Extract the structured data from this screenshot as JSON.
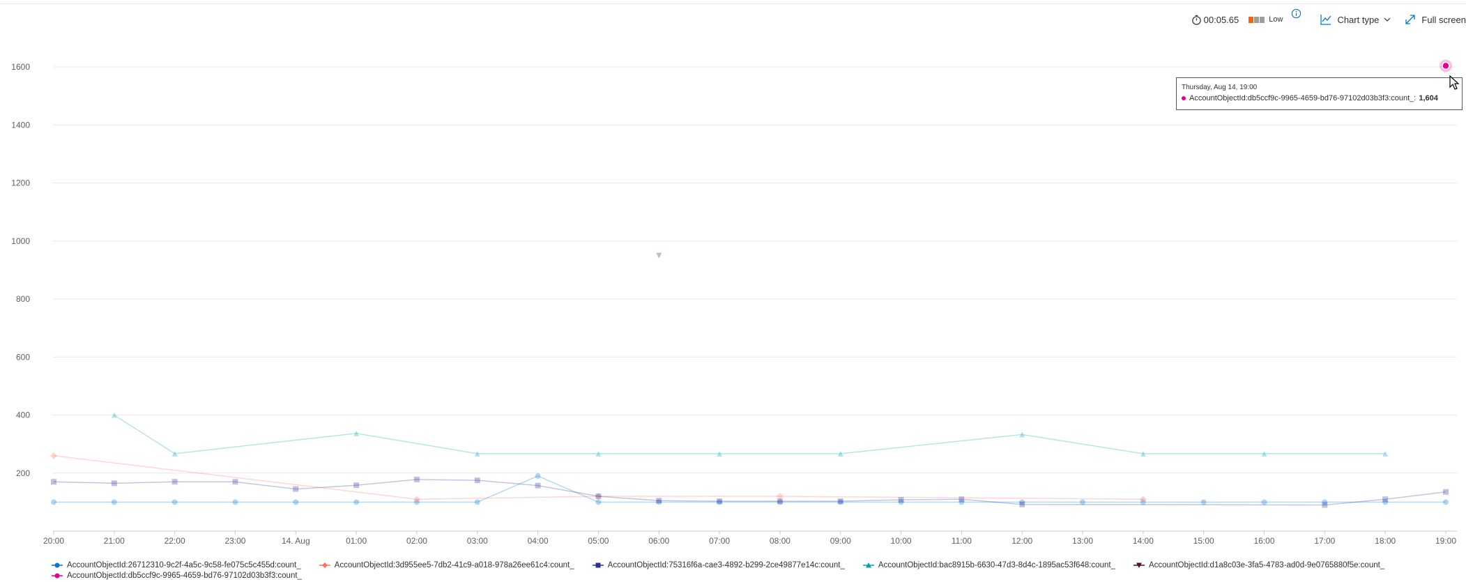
{
  "toolbar": {
    "duration": "00:05.65",
    "perf_label": "Low",
    "perf_colors": [
      "#f7630c",
      "#a19f9d",
      "#a19f9d"
    ],
    "chart_type_label": "Chart type",
    "full_screen_label": "Full screen",
    "icons": [
      "timer-icon",
      "info-icon",
      "line-chart-icon",
      "chevron-down-icon",
      "expand-icon"
    ]
  },
  "tooltip": {
    "date": "Thursday, Aug 14, 19:00",
    "series": "AccountObjectId:db5ccf9c-9965-4659-bd76-97102d03b3f3:count_:",
    "value": "1,604",
    "color": "#e3008c"
  },
  "chart_data": {
    "type": "line",
    "ylim": [
      0,
      1700
    ],
    "yticks": [
      200,
      400,
      600,
      800,
      1000,
      1200,
      1400,
      1600
    ],
    "x": [
      "20:00",
      "21:00",
      "22:00",
      "23:00",
      "14. Aug",
      "01:00",
      "02:00",
      "03:00",
      "04:00",
      "05:00",
      "06:00",
      "07:00",
      "08:00",
      "09:00",
      "10:00",
      "11:00",
      "12:00",
      "13:00",
      "14:00",
      "15:00",
      "16:00",
      "17:00",
      "18:00",
      "19:00"
    ],
    "grid": true,
    "legend": "bottom",
    "series": [
      {
        "name": "AccountObjectId:26712310-9c2f-4a5c-9c58-fe075c5c455d:count_",
        "color": "#0078d4",
        "marker": "circle",
        "values": [
          100,
          100,
          100,
          100,
          100,
          100,
          100,
          100,
          190,
          100,
          100,
          100,
          100,
          100,
          100,
          100,
          100,
          100,
          100,
          100,
          100,
          100,
          100,
          100
        ]
      },
      {
        "name": "AccountObjectId:3d955ee5-7db2-41c9-a018-978a26ee61c4:count_",
        "color": "#ff6f61",
        "marker": "diamond",
        "values": [
          260,
          null,
          null,
          null,
          null,
          null,
          110,
          null,
          null,
          120,
          null,
          null,
          120,
          null,
          null,
          null,
          null,
          null,
          110,
          null,
          null,
          null,
          null,
          null
        ]
      },
      {
        "name": "AccountObjectId:75316f6a-cae3-4892-b299-2ce49877e14c:count_",
        "color": "#2b2f9b",
        "marker": "square",
        "values": [
          170,
          165,
          170,
          170,
          145,
          158,
          178,
          175,
          157,
          120,
          105,
          103,
          103,
          103,
          108,
          110,
          92,
          null,
          null,
          null,
          null,
          90,
          110,
          135
        ]
      },
      {
        "name": "AccountObjectId:bac8915b-6630-47d3-8d4c-1895ac53f648:count_",
        "color": "#00a2ad",
        "marker": "triangle",
        "values": [
          null,
          400,
          267,
          null,
          null,
          337,
          null,
          267,
          null,
          267,
          null,
          267,
          null,
          267,
          null,
          null,
          333,
          null,
          267,
          null,
          267,
          null,
          267,
          null
        ]
      },
      {
        "name": "AccountObjectId:d1a8c03e-3fa5-4783-ad0d-9e0765880f5e:count_",
        "color": "#4a0e2e",
        "marker": "triangle-down",
        "values": [
          null,
          null,
          null,
          null,
          null,
          null,
          null,
          null,
          null,
          null,
          950,
          null,
          null,
          null,
          null,
          null,
          null,
          null,
          null,
          null,
          null,
          null,
          null,
          null
        ]
      },
      {
        "name": "AccountObjectId:db5ccf9c-9965-4659-bd76-97102d03b3f3:count_",
        "color": "#e3008c",
        "marker": "circle",
        "values": [
          null,
          null,
          null,
          null,
          null,
          null,
          null,
          null,
          null,
          null,
          null,
          null,
          null,
          null,
          null,
          null,
          null,
          null,
          null,
          null,
          null,
          null,
          null,
          1604
        ]
      }
    ]
  }
}
